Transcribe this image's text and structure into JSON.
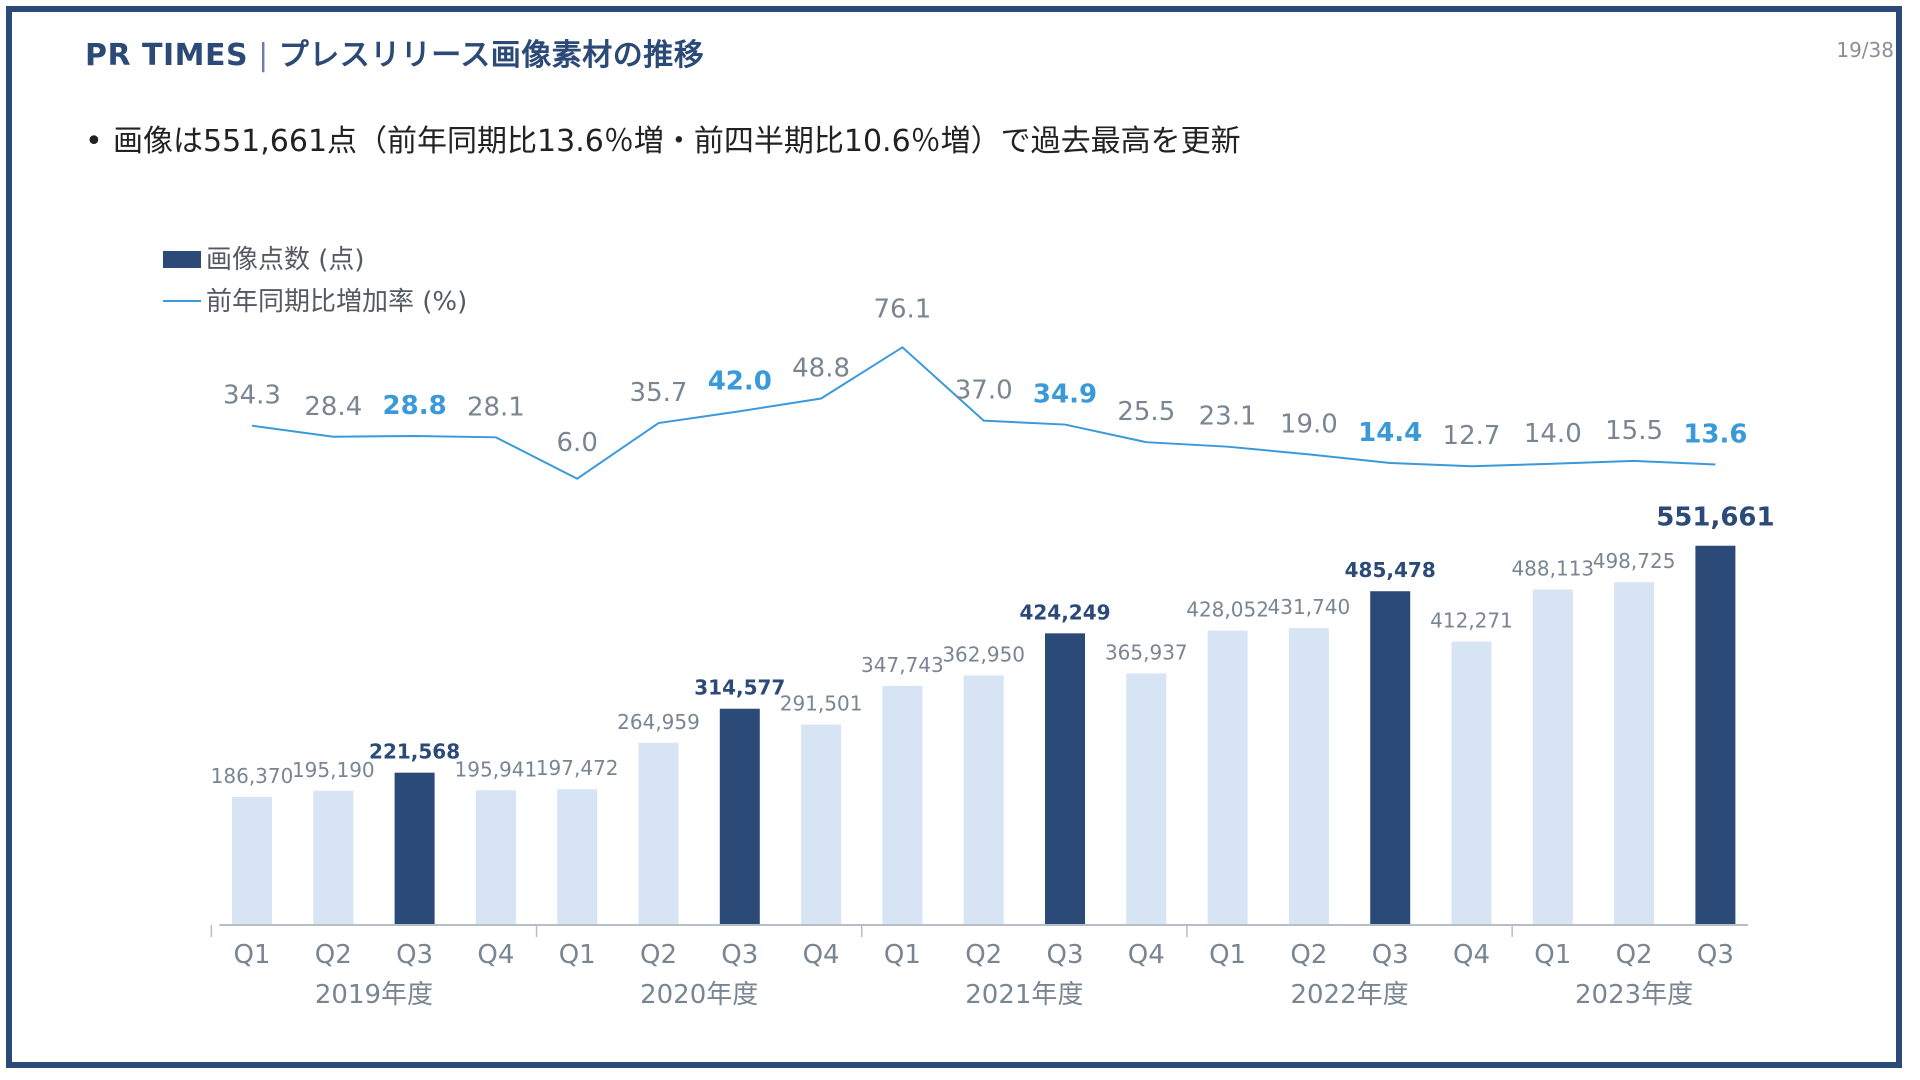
{
  "header": {
    "brand": "PR TIMES",
    "separator": "|",
    "title": "プレスリリース画像素材の推移",
    "page": "19/38"
  },
  "bullet": {
    "marker": "•",
    "text": "画像は551,661点（前年同期比13.6％増・前四半期比10.6％増）で過去最高を更新"
  },
  "colors": {
    "brand": "#2c4a77",
    "bar_highlight": "#2c4a77",
    "bar_normal": "#d6e4f3",
    "line": "#3a9ad9",
    "label_gray": "#7a8592",
    "label_highlight_rate": "#3a9ad9"
  },
  "chart_data": {
    "type": "bar+line",
    "legend": [
      {
        "name": "画像点数 (点)",
        "kind": "bar"
      },
      {
        "name": "前年同期比増加率 (%)",
        "kind": "line"
      }
    ],
    "categories": [
      "Q1",
      "Q2",
      "Q3",
      "Q4",
      "Q1",
      "Q2",
      "Q3",
      "Q4",
      "Q1",
      "Q2",
      "Q3",
      "Q4",
      "Q1",
      "Q2",
      "Q3",
      "Q4",
      "Q1",
      "Q2",
      "Q3"
    ],
    "year_groups": [
      {
        "label": "2019年度",
        "count": 4
      },
      {
        "label": "2020年度",
        "count": 4
      },
      {
        "label": "2021年度",
        "count": 4
      },
      {
        "label": "2022年度",
        "count": 4
      },
      {
        "label": "2023年度",
        "count": 3
      }
    ],
    "series": [
      {
        "name": "画像点数 (点)",
        "type": "bar",
        "values": [
          186370,
          195190,
          221568,
          195941,
          197472,
          264959,
          314577,
          291501,
          347743,
          362950,
          424249,
          365937,
          428052,
          431740,
          485478,
          412271,
          488113,
          498725,
          551661
        ],
        "labels": [
          "186,370",
          "195,190",
          "221,568",
          "195,941",
          "197,472",
          "264,959",
          "314,577",
          "291,501",
          "347,743",
          "362,950",
          "424,249",
          "365,937",
          "428,052",
          "431,740",
          "485,478",
          "412,271",
          "488,113",
          "498,725",
          "551,661"
        ]
      },
      {
        "name": "前年同期比増加率 (%)",
        "type": "line",
        "values": [
          34.3,
          28.4,
          28.8,
          28.1,
          6.0,
          35.7,
          42.0,
          48.8,
          76.1,
          37.0,
          34.9,
          25.5,
          23.1,
          19.0,
          14.4,
          12.7,
          14.0,
          15.5,
          13.6
        ],
        "labels": [
          "34.3",
          "28.4",
          "28.8",
          "28.1",
          "6.0",
          "35.7",
          "42.0",
          "48.8",
          "76.1",
          "37.0",
          "34.9",
          "25.5",
          "23.1",
          "19.0",
          "14.4",
          "12.7",
          "14.0",
          "15.5",
          "13.6"
        ]
      }
    ],
    "highlight_indices": [
      2,
      6,
      10,
      14,
      18
    ],
    "bar_ylim": [
      0,
      560000
    ],
    "line_ylim": [
      0,
      80
    ]
  }
}
